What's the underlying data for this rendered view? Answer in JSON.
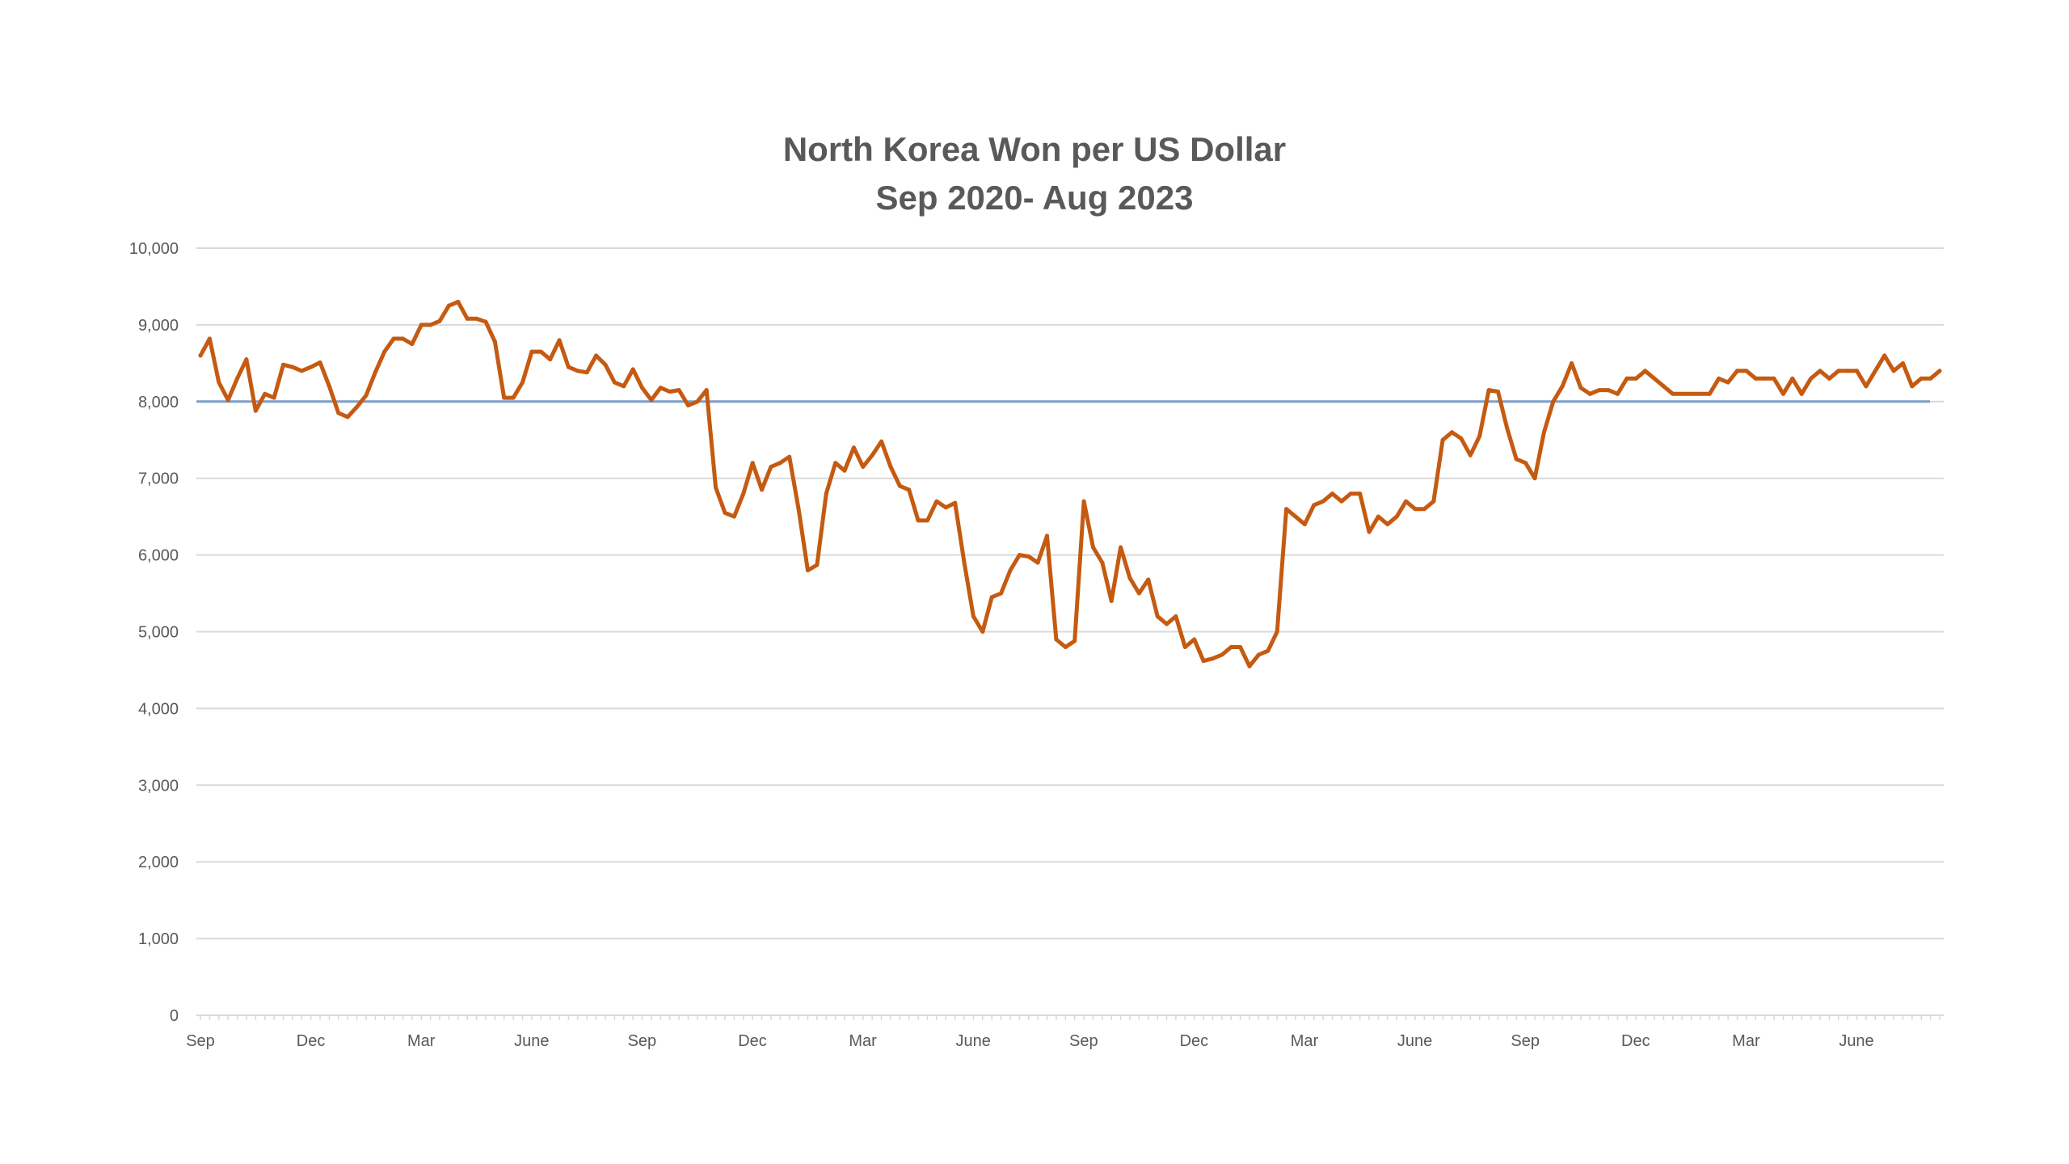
{
  "chart_data": {
    "type": "line",
    "title": "North Korea Won per US Dollar",
    "subtitle": "Sep 2020- Aug 2023",
    "xlabel": "",
    "ylabel": "",
    "ylim": [
      0,
      10000
    ],
    "yticks": [
      0,
      1000,
      2000,
      3000,
      4000,
      5000,
      6000,
      7000,
      8000,
      9000,
      10000
    ],
    "ytick_labels": [
      "0",
      "1,000",
      "2,000",
      "3,000",
      "4,000",
      "5,000",
      "6,000",
      "7,000",
      "8,000",
      "9,000",
      "10,000"
    ],
    "xtick_labels": [
      "Sep",
      "Dec",
      "Mar",
      "June",
      "Sep",
      "Dec",
      "Mar",
      "June",
      "Sep",
      "Dec",
      "Mar",
      "June",
      "Sep",
      "Dec",
      "Mar",
      "June"
    ],
    "grid": true,
    "legend": "none",
    "reference_line": {
      "value": 8000,
      "color": "#7f9ec9"
    },
    "series": [
      {
        "color": "#c55a11",
        "values": [
          8600,
          8820,
          8250,
          8020,
          8300,
          8550,
          7880,
          8100,
          8050,
          8480,
          8450,
          8400,
          8450,
          8510,
          8200,
          7850,
          7800,
          7930,
          8080,
          8380,
          8650,
          8820,
          8820,
          8750,
          9000,
          9000,
          9050,
          9250,
          9300,
          9080,
          9080,
          9040,
          8780,
          8050,
          8050,
          8250,
          8650,
          8650,
          8550,
          8800,
          8450,
          8400,
          8380,
          8600,
          8480,
          8250,
          8200,
          8420,
          8180,
          8020,
          8180,
          8130,
          8150,
          7950,
          8000,
          8150,
          6880,
          6550,
          6500,
          6800,
          7200,
          6850,
          7150,
          7200,
          7280,
          6600,
          5800,
          5870,
          6800,
          7200,
          7100,
          7400,
          7150,
          7300,
          7480,
          7150,
          6900,
          6850,
          6450,
          6450,
          6700,
          6620,
          6680,
          5900,
          5200,
          5000,
          5450,
          5500,
          5800,
          6000,
          5980,
          5900,
          6250,
          4900,
          4800,
          4880,
          6700,
          6100,
          5900,
          5400,
          6100,
          5700,
          5500,
          5680,
          5200,
          5100,
          5200,
          4800,
          4900,
          4620,
          4650,
          4700,
          4800,
          4800,
          4550,
          4700,
          4750,
          5000,
          6600,
          6500,
          6400,
          6650,
          6700,
          6800,
          6700,
          6800,
          6800,
          6300,
          6500,
          6400,
          6500,
          6700,
          6600,
          6600,
          6700,
          7500,
          7600,
          7520,
          7300,
          7550,
          8150,
          8130,
          7650,
          7250,
          7200,
          7000,
          7600,
          8000,
          8200,
          8500,
          8180,
          8100,
          8150,
          8150,
          8100,
          8300,
          8300,
          8400,
          8300,
          8200,
          8100,
          8100,
          8100,
          8100,
          8100,
          8300,
          8250,
          8400,
          8400,
          8300,
          8300,
          8300,
          8100,
          8300,
          8100,
          8300,
          8400,
          8300,
          8400,
          8400,
          8400,
          8200,
          8400,
          8600,
          8400,
          8500,
          8200,
          8300,
          8300,
          8400
        ]
      }
    ]
  }
}
